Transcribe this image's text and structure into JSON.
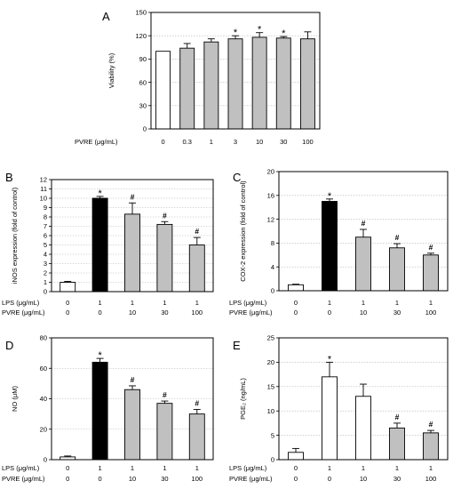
{
  "chart_data": [
    {
      "panel_label": "A",
      "type": "bar",
      "ylabel": "Viability (%)",
      "ylim": [
        0,
        150
      ],
      "yticks": [
        0,
        30,
        60,
        90,
        120,
        150
      ],
      "grid": true,
      "conditions": [
        {
          "label": "PVRE (μg/mL)",
          "values": [
            "0",
            "0.3",
            "1",
            "3",
            "10",
            "30",
            "100"
          ]
        }
      ],
      "bars": [
        {
          "value": 100,
          "error": 0,
          "fill": "#ffffff",
          "mark": ""
        },
        {
          "value": 104,
          "error": 6,
          "fill": "#c0c0c0",
          "mark": ""
        },
        {
          "value": 112,
          "error": 4,
          "fill": "#c0c0c0",
          "mark": ""
        },
        {
          "value": 116,
          "error": 4,
          "fill": "#c0c0c0",
          "mark": "*"
        },
        {
          "value": 118,
          "error": 6,
          "fill": "#c0c0c0",
          "mark": "*"
        },
        {
          "value": 117,
          "error": 2,
          "fill": "#c0c0c0",
          "mark": "*"
        },
        {
          "value": 116,
          "error": 9,
          "fill": "#c0c0c0",
          "mark": ""
        }
      ]
    },
    {
      "panel_label": "B",
      "type": "bar",
      "ylabel": "iNOS expression (fold of control)",
      "ylim": [
        0,
        12
      ],
      "yticks": [
        0,
        1,
        2,
        3,
        4,
        5,
        6,
        7,
        8,
        9,
        10,
        11,
        12
      ],
      "grid": true,
      "conditions": [
        {
          "label": "LPS (μg/mL)",
          "values": [
            "0",
            "1",
            "1",
            "1",
            "1"
          ]
        },
        {
          "label": "PVRE (μg/mL)",
          "values": [
            "0",
            "0",
            "10",
            "30",
            "100"
          ]
        }
      ],
      "bars": [
        {
          "value": 1.0,
          "error": 0.1,
          "fill": "#ffffff",
          "mark": ""
        },
        {
          "value": 10.0,
          "error": 0.2,
          "fill": "#000000",
          "mark": "*"
        },
        {
          "value": 8.3,
          "error": 1.2,
          "fill": "#c0c0c0",
          "mark": "#"
        },
        {
          "value": 7.2,
          "error": 0.3,
          "fill": "#c0c0c0",
          "mark": "#"
        },
        {
          "value": 5.0,
          "error": 0.8,
          "fill": "#c0c0c0",
          "mark": "#"
        }
      ]
    },
    {
      "panel_label": "C",
      "type": "bar",
      "ylabel": "COX-2 expression (fold of control)",
      "ylim": [
        0,
        20
      ],
      "yticks": [
        0,
        4,
        8,
        12,
        16,
        20
      ],
      "grid": true,
      "conditions": [
        {
          "label": "LPS (μg/mL)",
          "values": [
            "0",
            "1",
            "1",
            "1",
            "1"
          ]
        },
        {
          "label": "PVRE (μg/mL)",
          "values": [
            "0",
            "0",
            "10",
            "30",
            "100"
          ]
        }
      ],
      "bars": [
        {
          "value": 1.0,
          "error": 0.1,
          "fill": "#ffffff",
          "mark": ""
        },
        {
          "value": 15.0,
          "error": 0.4,
          "fill": "#000000",
          "mark": "*"
        },
        {
          "value": 9.0,
          "error": 1.3,
          "fill": "#c0c0c0",
          "mark": "#"
        },
        {
          "value": 7.2,
          "error": 0.7,
          "fill": "#c0c0c0",
          "mark": "#"
        },
        {
          "value": 6.0,
          "error": 0.3,
          "fill": "#c0c0c0",
          "mark": "#"
        }
      ]
    },
    {
      "panel_label": "D",
      "type": "bar",
      "ylabel": "NO (μM)",
      "ylim": [
        0,
        80
      ],
      "yticks": [
        0,
        20,
        40,
        60,
        80
      ],
      "grid": true,
      "conditions": [
        {
          "label": "LPS (μg/mL)",
          "values": [
            "0",
            "1",
            "1",
            "1",
            "1"
          ]
        },
        {
          "label": "PVRE (μg/mL)",
          "values": [
            "0",
            "0",
            "10",
            "30",
            "100"
          ]
        }
      ],
      "bars": [
        {
          "value": 1.8,
          "error": 0.6,
          "fill": "#ffffff",
          "mark": ""
        },
        {
          "value": 64,
          "error": 2.5,
          "fill": "#000000",
          "mark": "*"
        },
        {
          "value": 46,
          "error": 2.5,
          "fill": "#c0c0c0",
          "mark": "#"
        },
        {
          "value": 37,
          "error": 1.5,
          "fill": "#c0c0c0",
          "mark": "#"
        },
        {
          "value": 30,
          "error": 3.0,
          "fill": "#c0c0c0",
          "mark": "#"
        }
      ]
    },
    {
      "panel_label": "E",
      "type": "bar",
      "ylabel": "PGE₂ (ng/mL)",
      "ylim": [
        0,
        25
      ],
      "yticks": [
        0,
        5,
        10,
        15,
        20,
        25
      ],
      "grid": true,
      "conditions": [
        {
          "label": "LPS (μg/mL)",
          "values": [
            "0",
            "1",
            "1",
            "1",
            "1"
          ]
        },
        {
          "label": "PVRE (μg/mL)",
          "values": [
            "0",
            "0",
            "10",
            "30",
            "100"
          ]
        }
      ],
      "bars": [
        {
          "value": 1.5,
          "error": 0.8,
          "fill": "#ffffff",
          "mark": ""
        },
        {
          "value": 17.0,
          "error": 3.0,
          "fill": "#ffffff",
          "mark": "*"
        },
        {
          "value": 13.0,
          "error": 2.5,
          "fill": "#ffffff",
          "mark": ""
        },
        {
          "value": 6.5,
          "error": 1.0,
          "fill": "#c0c0c0",
          "mark": "#"
        },
        {
          "value": 5.5,
          "error": 0.5,
          "fill": "#c0c0c0",
          "mark": "#"
        }
      ]
    }
  ]
}
